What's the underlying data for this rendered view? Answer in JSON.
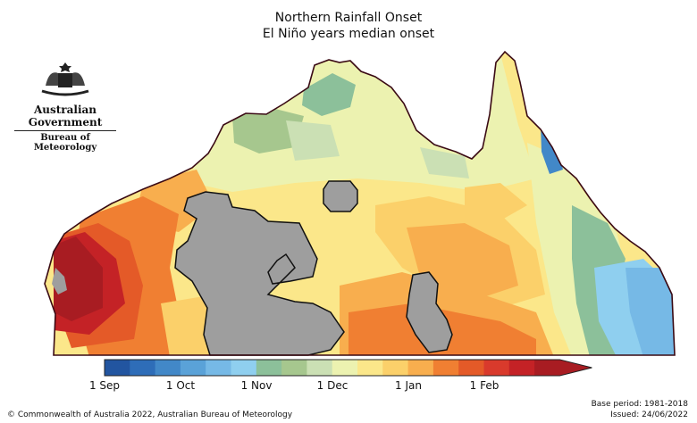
{
  "title": "Northern Rainfall Onset",
  "subtitle": "El Niño years median onset",
  "logo": {
    "government": "Australian Government",
    "bureau": "Bureau of Meteorology",
    "icon": "coat-of-arms-icon"
  },
  "legend": {
    "colors": [
      "#2255a0",
      "#2e6db8",
      "#4288c8",
      "#5aa2d8",
      "#76b9e6",
      "#8fcfef",
      "#8cc09a",
      "#a6c78e",
      "#cbe0b4",
      "#ecf2b0",
      "#fbe78a",
      "#fbd06a",
      "#f8ae4e",
      "#f07f32",
      "#e45a28",
      "#d93a2c",
      "#c42226",
      "#a81c22"
    ],
    "labels": [
      "1 Sep",
      "1 Oct",
      "1 Nov",
      "1 Dec",
      "1 Jan",
      "1 Feb"
    ]
  },
  "colors": {
    "no_data": "#9e9e9e",
    "coast": "#3a0a14"
  },
  "footer": {
    "copyright": "© Commonwealth of Australia 2022, Australian Bureau of Meteorology",
    "base_period": "Base period: 1981-2018",
    "issued": "Issued: 24/06/2022"
  }
}
